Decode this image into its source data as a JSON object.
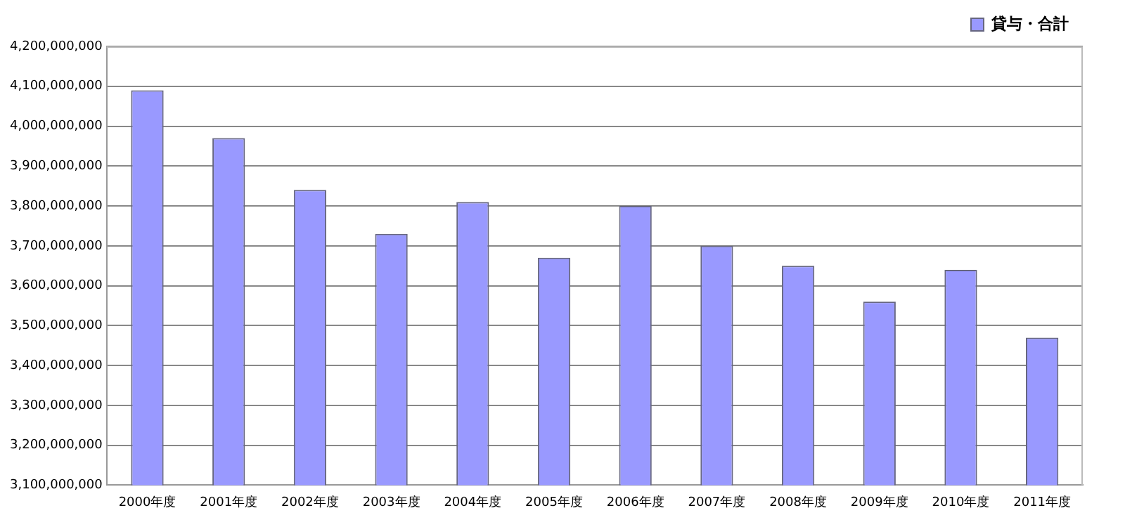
{
  "chart_data": {
    "type": "bar",
    "categories": [
      "2000年度",
      "2001年度",
      "2002年度",
      "2003年度",
      "2004年度",
      "2005年度",
      "2006年度",
      "2007年度",
      "2008年度",
      "2009年度",
      "2010年度",
      "2011年度"
    ],
    "series": [
      {
        "name": "貸与・合計",
        "color": "#9999ff",
        "values": [
          4090000000,
          3970000000,
          3840000000,
          3730000000,
          3810000000,
          3670000000,
          3800000000,
          3700000000,
          3650000000,
          3560000000,
          3640000000,
          3470000000
        ]
      }
    ],
    "ylim": [
      3100000000,
      4200000000
    ],
    "yticks": [
      {
        "value": 3100000000,
        "label": "3,100,000,000"
      },
      {
        "value": 3200000000,
        "label": "3,200,000,000"
      },
      {
        "value": 3300000000,
        "label": "3,300,000,000"
      },
      {
        "value": 3400000000,
        "label": "3,400,000,000"
      },
      {
        "value": 3500000000,
        "label": "3,500,000,000"
      },
      {
        "value": 3600000000,
        "label": "3,600,000,000"
      },
      {
        "value": 3700000000,
        "label": "3,700,000,000"
      },
      {
        "value": 3800000000,
        "label": "3,800,000,000"
      },
      {
        "value": 3900000000,
        "label": "3,900,000,000"
      },
      {
        "value": 4000000000,
        "label": "4,000,000,000"
      },
      {
        "value": 4100000000,
        "label": "4,100,000,000"
      },
      {
        "value": 4200000000,
        "label": "4,200,000,000"
      }
    ],
    "grid": "y",
    "legend": "top right"
  }
}
